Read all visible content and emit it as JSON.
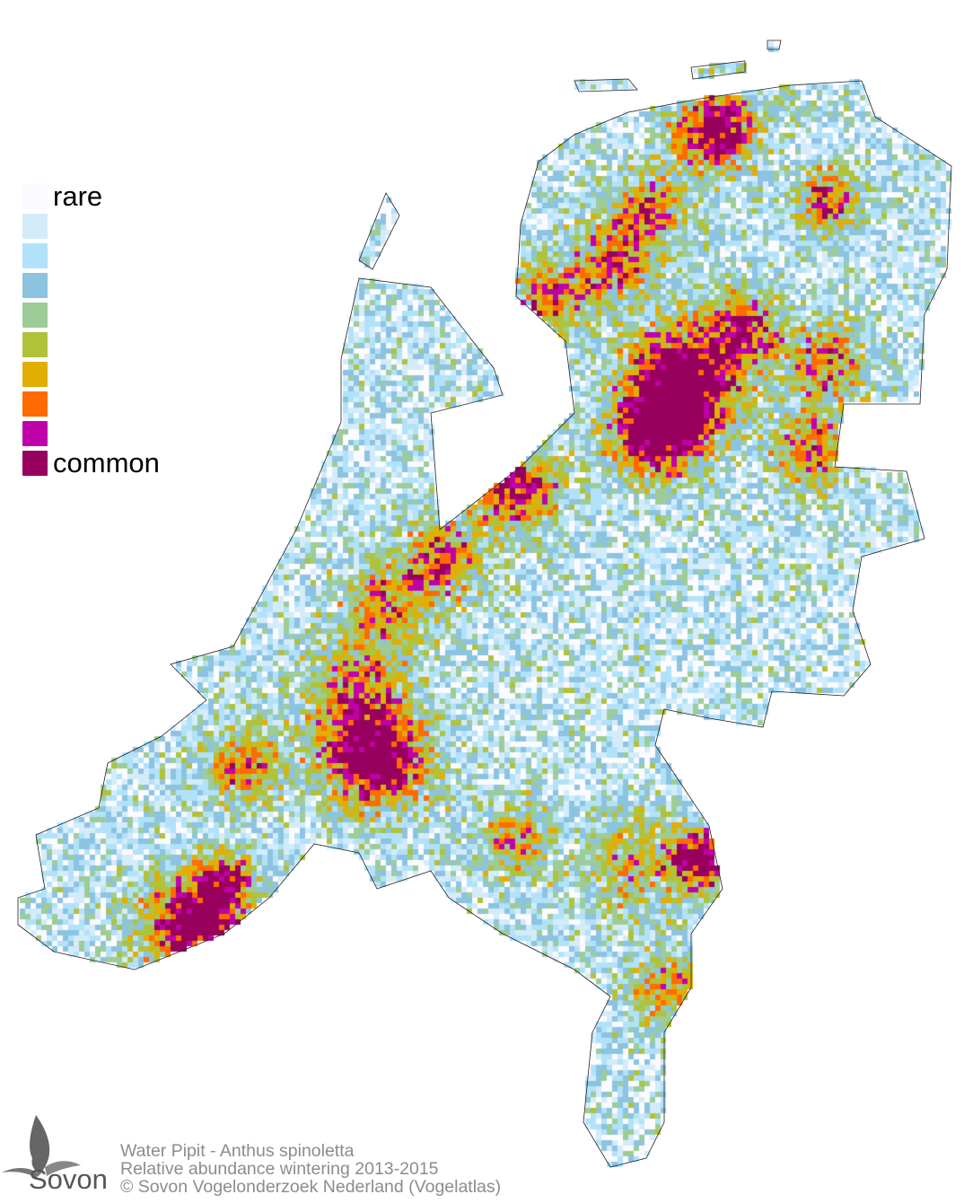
{
  "legend": {
    "items": [
      {
        "label": "rare",
        "color": "#fbfbff"
      },
      {
        "label": "",
        "color": "#d4ecfa"
      },
      {
        "label": "",
        "color": "#b1e2fa"
      },
      {
        "label": "",
        "color": "#8cc3e0"
      },
      {
        "label": "",
        "color": "#9dcc98"
      },
      {
        "label": "",
        "color": "#b0c23a"
      },
      {
        "label": "",
        "color": "#e1ae06"
      },
      {
        "label": "",
        "color": "#ff6b00"
      },
      {
        "label": "",
        "color": "#c000a8"
      },
      {
        "label": "common",
        "color": "#98005e"
      }
    ]
  },
  "footer": {
    "species": "Water Pipit - Anthus spinoletta",
    "subtitle": "Relative abundance wintering 2013-2015",
    "copyright": "© Sovon Vogelonderzoek Nederland (Vogelatlas)"
  },
  "logo": {
    "text": "Sovon"
  }
}
